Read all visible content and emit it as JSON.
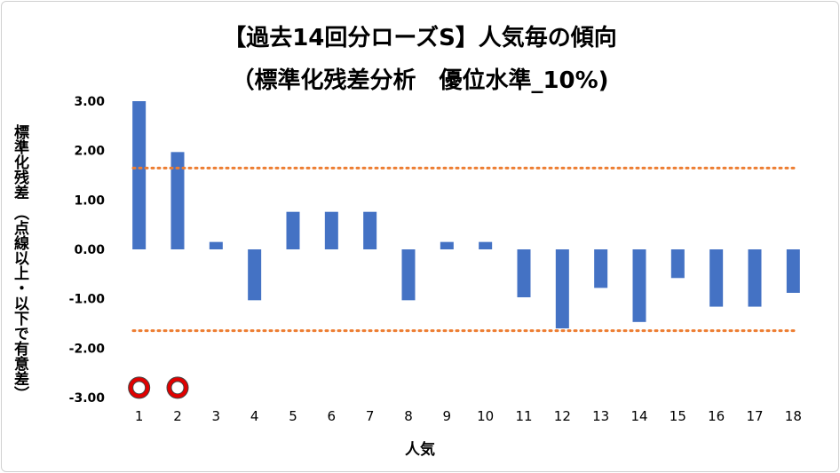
{
  "chart_data": {
    "type": "bar",
    "title_line1": "【過去14回分ローズS】人気毎の傾向",
    "title_line2": "（標準化残差分析　優位水準_10%)",
    "ylabel_line1": "標準化残差",
    "ylabel_line2": "（点線以上・以下で有意差）",
    "xlabel": "人気",
    "categories": [
      "1",
      "2",
      "3",
      "4",
      "5",
      "6",
      "7",
      "8",
      "9",
      "10",
      "11",
      "12",
      "13",
      "14",
      "15",
      "16",
      "17",
      "18"
    ],
    "values": [
      3.0,
      1.97,
      0.15,
      -1.03,
      0.76,
      0.76,
      0.76,
      -1.03,
      0.15,
      0.15,
      -0.97,
      -1.6,
      -0.78,
      -1.47,
      -0.58,
      -1.16,
      -1.16,
      -0.88
    ],
    "ylim": [
      -3.0,
      3.0
    ],
    "yticks": [
      "3.00",
      "2.00",
      "1.00",
      "0.00",
      "-1.00",
      "-2.00",
      "-3.00"
    ],
    "threshold_upper": 1.645,
    "threshold_lower": -1.645,
    "markers": [
      {
        "category": "1",
        "y": -2.8
      },
      {
        "category": "2",
        "y": -2.8
      }
    ],
    "colors": {
      "bar": "#4472C4",
      "threshold": "#ED7D31",
      "marker_outer": "#E00000",
      "marker_inner": "#ffffff"
    },
    "grid": false,
    "legend": "none"
  }
}
